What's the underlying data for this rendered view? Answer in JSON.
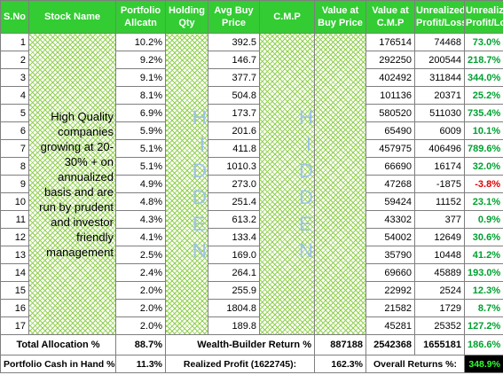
{
  "header": [
    "S.No",
    "Stock Name",
    "Portfolio Allcatn",
    "Holding Qty",
    "Avg Buy Price",
    "C.M.P",
    "Value at Buy Price",
    "Value at C.M.P",
    "Unrealized Profit/Loss",
    "Unrealized Profit/Loss"
  ],
  "stock_note": "High Quality companies growing at 20-30% + on annualized basis and are run by prudent and investor friendly management",
  "hidden_label": "HIDDEN",
  "rows": [
    [
      1,
      "10.2%",
      "392.5",
      176514,
      74468,
      "73.0%"
    ],
    [
      2,
      "9.2%",
      "146.7",
      292250,
      200544,
      "218.7%"
    ],
    [
      3,
      "9.1%",
      "377.7",
      402492,
      311844,
      "344.0%"
    ],
    [
      4,
      "8.1%",
      "504.8",
      101136,
      20371,
      "25.2%"
    ],
    [
      5,
      "6.9%",
      "173.7",
      580520,
      511030,
      "735.4%"
    ],
    [
      6,
      "5.9%",
      "201.6",
      65490,
      6009,
      "10.1%"
    ],
    [
      7,
      "5.1%",
      "411.8",
      457975,
      406496,
      "789.6%"
    ],
    [
      8,
      "5.1%",
      "1010.3",
      66690,
      16174,
      "32.0%"
    ],
    [
      9,
      "4.9%",
      "273.0",
      47268,
      -1875,
      "-3.8%"
    ],
    [
      10,
      "4.8%",
      "251.4",
      59424,
      11152,
      "23.1%"
    ],
    [
      11,
      "4.3%",
      "613.2",
      43302,
      377,
      "0.9%"
    ],
    [
      12,
      "4.1%",
      "133.4",
      54002,
      12649,
      "30.6%"
    ],
    [
      13,
      "2.5%",
      "169.0",
      35790,
      10448,
      "41.2%"
    ],
    [
      14,
      "2.4%",
      "264.1",
      69660,
      45889,
      "193.0%"
    ],
    [
      15,
      "2.0%",
      "255.9",
      22992,
      2524,
      "12.3%"
    ],
    [
      16,
      "2.0%",
      "1804.8",
      21582,
      1729,
      "8.7%"
    ],
    [
      17,
      "2.0%",
      "189.8",
      45281,
      25352,
      "127.2%"
    ]
  ],
  "totals": {
    "label": "Total Allocation %",
    "allocation": "88.7%",
    "return_label": "Wealth-Builder Return %",
    "value_buy": 887188,
    "value_cmp": 2542368,
    "profit": 1655181,
    "profit_pct": "186.6%"
  },
  "summary": {
    "cash_label": "Portfolio Cash in Hand %:",
    "cash": "11.3%",
    "realized_label": "Realized Profit (1622745):",
    "realized": "162.3%",
    "overall_label": "Overall Returns %:",
    "overall": "348.9%"
  }
}
